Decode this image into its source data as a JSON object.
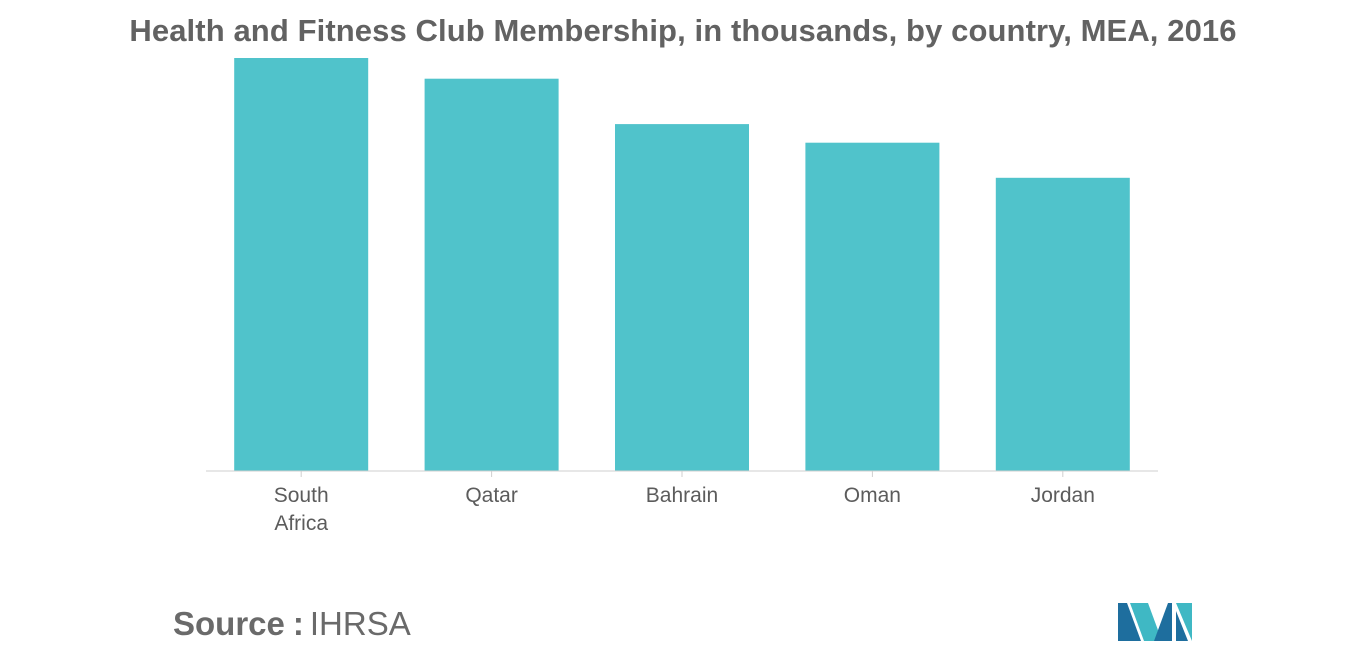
{
  "chart_data": {
    "type": "bar",
    "title": "Health and Fitness Club Membership, in thousands, by country, MEA, 2016",
    "xlabel": "",
    "ylabel": "",
    "categories": [
      "South Africa",
      "Qatar",
      "Bahrain",
      "Oman",
      "Jordan"
    ],
    "values": [
      100,
      95,
      84,
      79.5,
      71
    ],
    "ylim": [
      0,
      100
    ],
    "grid": false,
    "legend": "none",
    "bar_color": "#50c3cb"
  },
  "source": {
    "label": "Source",
    "separator": ":",
    "value": "IHRSA"
  },
  "logo": {
    "icon": "mordor-intelligence-logo",
    "colors": [
      "#1e6e9e",
      "#3fb8c4"
    ]
  }
}
